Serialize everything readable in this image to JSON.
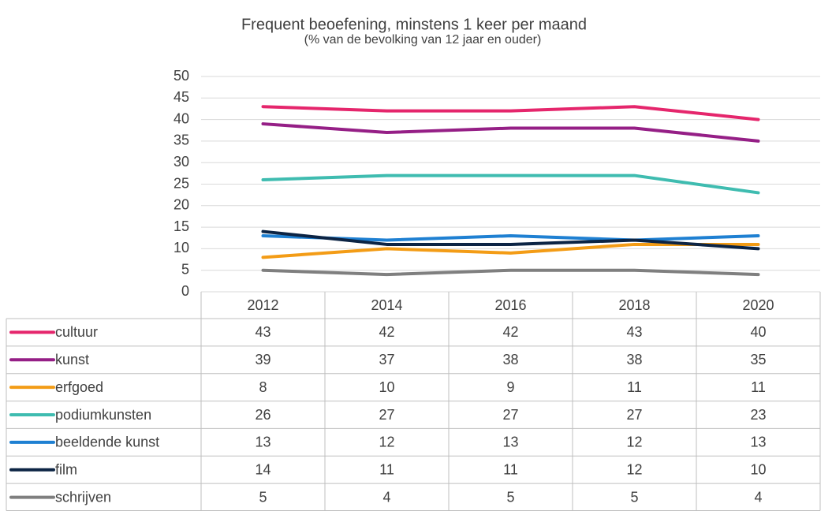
{
  "chart_data": {
    "type": "line",
    "title": "Frequent beoefening, minstens 1 keer per maand",
    "subtitle": "(% van de bevolking van 12 jaar en ouder)",
    "categories": [
      "2012",
      "2014",
      "2016",
      "2018",
      "2020"
    ],
    "ylim": [
      0,
      50
    ],
    "yticks": [
      0,
      5,
      10,
      15,
      20,
      25,
      30,
      35,
      40,
      45,
      50
    ],
    "grid": true,
    "series": [
      {
        "name": "cultuur",
        "color": "#e5266c",
        "values": [
          43,
          42,
          42,
          43,
          40
        ]
      },
      {
        "name": "kunst",
        "color": "#951f86",
        "values": [
          39,
          37,
          38,
          38,
          35
        ]
      },
      {
        "name": "erfgoed",
        "color": "#f39c16",
        "values": [
          8,
          10,
          9,
          11,
          11
        ]
      },
      {
        "name": "podiumkunsten",
        "color": "#3fbcb0",
        "values": [
          26,
          27,
          27,
          27,
          23
        ]
      },
      {
        "name": "beeldende kunst",
        "color": "#1f80d2",
        "values": [
          13,
          12,
          13,
          12,
          13
        ]
      },
      {
        "name": "film",
        "color": "#0c2444",
        "values": [
          14,
          11,
          11,
          12,
          10
        ]
      },
      {
        "name": "schrijven",
        "color": "#7f7f7f",
        "values": [
          5,
          4,
          5,
          5,
          4
        ]
      }
    ]
  }
}
